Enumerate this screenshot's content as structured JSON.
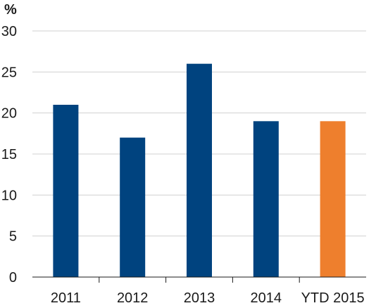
{
  "chart_data": {
    "type": "bar",
    "title": "",
    "xlabel": "",
    "ylabel": "%",
    "categories": [
      "2011",
      "2012",
      "2013",
      "2014",
      "YTD 2015"
    ],
    "values": [
      21,
      17,
      26,
      19,
      19
    ],
    "ylim": [
      0,
      30
    ],
    "yticks": [
      0,
      5,
      10,
      15,
      20,
      25,
      30
    ],
    "grid": true,
    "colors": [
      "#00437F",
      "#00437F",
      "#00437F",
      "#00437F",
      "#EE7F2D"
    ]
  }
}
